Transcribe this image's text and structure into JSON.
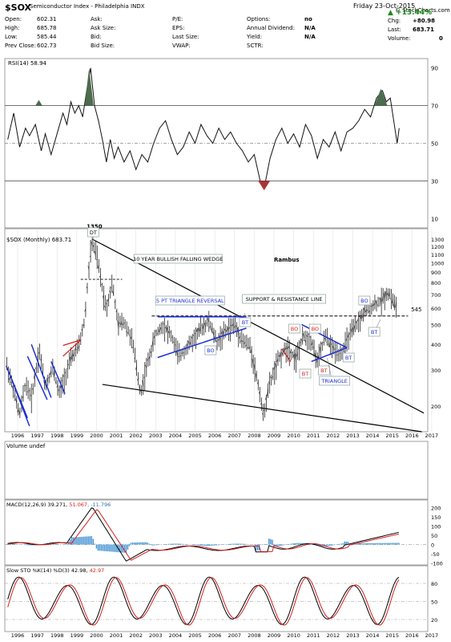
{
  "header": {
    "symbol": "$SOX",
    "name": "Semiconductor Index - Philadelphia  INDX",
    "fields_col1": [
      {
        "label": "Open:",
        "value": "602.31"
      },
      {
        "label": "High:",
        "value": "685.78"
      },
      {
        "label": "Low:",
        "value": "585.44"
      },
      {
        "label": "Prev Close:",
        "value": "602.73"
      }
    ],
    "fields_col2": [
      {
        "label": "Ask:",
        "value": ""
      },
      {
        "label": "Ask Size:",
        "value": ""
      },
      {
        "label": "Bid:",
        "value": ""
      },
      {
        "label": "Bid Size:",
        "value": ""
      }
    ],
    "fields_col3": [
      {
        "label": "P/E:",
        "value": ""
      },
      {
        "label": "EPS:",
        "value": ""
      },
      {
        "label": "Last Size:",
        "value": ""
      },
      {
        "label": "VWAP:",
        "value": ""
      }
    ],
    "fields_col4": [
      {
        "label": "Options:",
        "value": "no"
      },
      {
        "label": "Annual Dividend:",
        "value": "N/A"
      },
      {
        "label": "Yield:",
        "value": "N/A"
      },
      {
        "label": "SCTR:",
        "value": ""
      }
    ],
    "date": "Friday   23-Oct-2015",
    "change_pct": "+13.44%",
    "chg_label": "Chg:",
    "chg_value": "+80.98",
    "last_label": "Last:",
    "last_value": "683.71",
    "volume_label": "Volume:",
    "volume_value": "0",
    "copyright": "© StockCharts.com",
    "colors": {
      "up": "#1a8a1a",
      "box": "#9fb7d6"
    }
  },
  "panels": {
    "rsi": {
      "label": "RSI(14) 58.94",
      "ticks": [
        "90",
        "70",
        "50",
        "30",
        "10"
      ]
    },
    "price": {
      "label": "$SOX (Monthly) 683.71",
      "ticks": [
        "1300",
        "1200",
        "1100",
        "1000",
        "900",
        "800",
        "700",
        "600",
        "500",
        "400",
        "300",
        "200"
      ],
      "scale": "log"
    },
    "volume": {
      "label": "Volume undef"
    },
    "macd": {
      "label": "MACD(12,26,9) 39.271, 51.067, -11.796",
      "label_parts": [
        "MACD(12,26,9) 39.271, ",
        "51.067",
        ", -11.796"
      ],
      "ticks": [
        "200",
        "150",
        "100",
        "50",
        "0",
        "-50",
        "-100"
      ]
    },
    "sto": {
      "label": "Slow STO %K(14) %D(3) 42.98, 42.97",
      "label_parts": [
        "Slow STO %K(14) %D(3) 42.98, ",
        "42.97"
      ],
      "ticks": [
        "80",
        "50",
        "20"
      ]
    }
  },
  "years": [
    "1996",
    "1997",
    "1998",
    "1999",
    "2000",
    "2001",
    "2002",
    "2003",
    "2004",
    "2005",
    "2006",
    "2007",
    "2008",
    "2009",
    "2010",
    "2011",
    "2012",
    "2013",
    "2014",
    "2015",
    "2016",
    "2017"
  ],
  "annotations": {
    "peak": "1350",
    "wedge": "10 YEAR BULLISH FALLING WEDGE",
    "rambus": "Rambus",
    "triangle_reversal": "5 PT TRIANGLE REVERSAL",
    "sr_line": "SUPPORT & RESISTANCE LINE",
    "level": "545",
    "triangle": "TRIANGLE",
    "dt": "DT",
    "bt": "BT",
    "bo": "BO"
  },
  "chart_data": {
    "type": "bar",
    "title": "$SOX Semiconductor Index - Philadelphia (Monthly)",
    "x": [
      "1996",
      "1997",
      "1998",
      "1999",
      "2000",
      "2001",
      "2002",
      "2003",
      "2004",
      "2005",
      "2006",
      "2007",
      "2008",
      "2009",
      "2010",
      "2011",
      "2012",
      "2013",
      "2014",
      "2015"
    ],
    "series": [
      {
        "name": "$SOX (Monthly)",
        "values": [
          300,
          220,
          330,
          280,
          900,
          600,
          300,
          350,
          420,
          450,
          470,
          480,
          300,
          320,
          400,
          390,
          420,
          480,
          620,
          680
        ]
      }
    ],
    "yscale": "log",
    "ylim": [
      150,
      1400
    ],
    "last": 683.71
  }
}
